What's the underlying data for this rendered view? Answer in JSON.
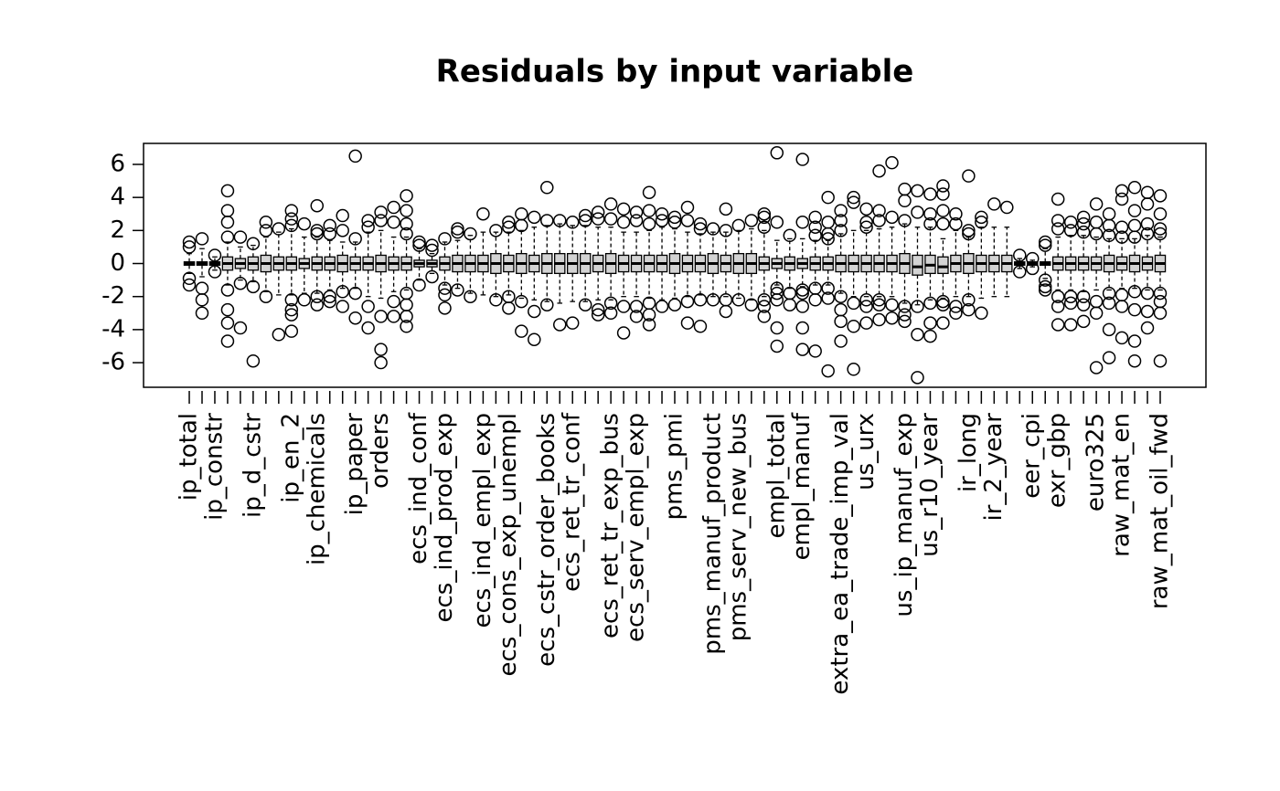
{
  "chart_data": {
    "type": "boxplot",
    "title": "Residuals by input variable",
    "categories": [
      "ip_total",
      null,
      "ip_constr",
      null,
      null,
      "ip_d_cstr",
      null,
      null,
      "ip_en_2",
      null,
      "ip_chemicals",
      null,
      null,
      "ip_paper",
      null,
      "orders",
      null,
      null,
      "ecs_ind_conf",
      null,
      "ecs_ind_prod_exp",
      null,
      null,
      "ecs_ind_empl_exp",
      null,
      "ecs_cons_exp_unempl",
      null,
      null,
      "ecs_cstr_order_books",
      null,
      "ecs_ret_tr_conf",
      null,
      null,
      "ecs_ret_tr_exp_bus",
      null,
      "ecs_serv_empl_exp",
      null,
      null,
      "pms_pmi",
      null,
      null,
      "pms_manuf_product",
      null,
      "pms_serv_new_bus",
      null,
      null,
      "empl_total",
      null,
      "empl_manuf",
      null,
      null,
      "extra_ea_trade_imp_val",
      null,
      "us_urx",
      null,
      null,
      "us_ip_manuf_exp",
      null,
      "us_r10_year",
      null,
      null,
      "ir_long",
      null,
      "ir_2_year",
      null,
      null,
      "eer_cpi",
      null,
      "exr_gbp",
      null,
      null,
      "euro325",
      null,
      "raw_mat_en",
      null,
      null,
      "raw_mat_oil_fwd"
    ],
    "median": [
      0,
      0,
      0,
      0,
      0,
      0,
      0,
      0,
      0,
      0,
      0,
      0,
      0,
      0,
      0,
      0,
      0,
      0,
      0,
      0,
      0,
      0,
      0,
      0,
      0,
      0,
      0,
      0,
      0,
      0,
      0,
      0,
      0,
      0,
      0,
      0,
      0,
      0,
      0,
      0,
      0,
      0,
      0,
      0,
      0,
      0,
      0,
      0,
      0,
      0,
      0,
      0,
      0,
      0,
      0,
      0,
      0,
      -0.2,
      -0.1,
      -0.2,
      0,
      0,
      0,
      0,
      0,
      0,
      0,
      0,
      0,
      0,
      0,
      0,
      0,
      0,
      0,
      0,
      0
    ],
    "q1": [
      -0.1,
      -0.1,
      -0.1,
      -0.4,
      -0.3,
      -0.4,
      -0.5,
      -0.4,
      -0.4,
      -0.3,
      -0.4,
      -0.4,
      -0.5,
      -0.4,
      -0.4,
      -0.5,
      -0.4,
      -0.4,
      -0.2,
      -0.2,
      -0.4,
      -0.5,
      -0.5,
      -0.5,
      -0.6,
      -0.5,
      -0.6,
      -0.5,
      -0.6,
      -0.6,
      -0.6,
      -0.6,
      -0.5,
      -0.6,
      -0.5,
      -0.5,
      -0.5,
      -0.5,
      -0.6,
      -0.5,
      -0.5,
      -0.6,
      -0.5,
      -0.6,
      -0.6,
      -0.4,
      -0.3,
      -0.4,
      -0.3,
      -0.4,
      -0.4,
      -0.5,
      -0.5,
      -0.5,
      -0.5,
      -0.5,
      -0.6,
      -0.7,
      -0.6,
      -0.6,
      -0.5,
      -0.6,
      -0.5,
      -0.5,
      -0.5,
      -0.1,
      -0.1,
      -0.1,
      -0.4,
      -0.4,
      -0.4,
      -0.4,
      -0.5,
      -0.4,
      -0.5,
      -0.4,
      -0.5
    ],
    "q3": [
      0.1,
      0.1,
      0.1,
      0.4,
      0.3,
      0.4,
      0.5,
      0.4,
      0.4,
      0.3,
      0.4,
      0.4,
      0.5,
      0.4,
      0.4,
      0.5,
      0.4,
      0.4,
      0.2,
      0.2,
      0.4,
      0.5,
      0.5,
      0.5,
      0.6,
      0.5,
      0.6,
      0.5,
      0.6,
      0.6,
      0.6,
      0.6,
      0.5,
      0.6,
      0.5,
      0.5,
      0.5,
      0.5,
      0.6,
      0.5,
      0.5,
      0.6,
      0.5,
      0.6,
      0.6,
      0.4,
      0.3,
      0.4,
      0.3,
      0.4,
      0.4,
      0.5,
      0.5,
      0.5,
      0.5,
      0.5,
      0.6,
      0.5,
      0.5,
      0.4,
      0.5,
      0.6,
      0.5,
      0.5,
      0.5,
      0.1,
      0.1,
      0.1,
      0.4,
      0.4,
      0.4,
      0.4,
      0.5,
      0.4,
      0.5,
      0.4,
      0.5
    ],
    "whisker_low": [
      -0.6,
      -0.8,
      -0.4,
      -1.3,
      -1.0,
      -1.1,
      -1.7,
      -1.9,
      -1.9,
      -1.8,
      -1.8,
      -1.6,
      -1.5,
      -1.5,
      -2.0,
      -2.1,
      -1.7,
      -1.6,
      -1.0,
      -0.6,
      -1.3,
      -1.5,
      -1.8,
      -1.9,
      -2.0,
      -1.9,
      -2.1,
      -2.2,
      -2.3,
      -2.4,
      -2.3,
      -2.3,
      -2.2,
      -2.2,
      -2.0,
      -2.0,
      -2.1,
      -2.2,
      -2.1,
      -2.0,
      -1.9,
      -2.0,
      -2.0,
      -2.1,
      -2.2,
      -2.0,
      -1.3,
      -1.5,
      -1.4,
      -1.3,
      -1.3,
      -1.8,
      -2.0,
      -2.0,
      -2.0,
      -2.0,
      -2.4,
      -2.5,
      -2.2,
      -2.1,
      -2.0,
      -2.0,
      -2.1,
      -2.0,
      -2.0,
      -0.3,
      -0.2,
      -0.9,
      -1.6,
      -1.6,
      -1.7,
      -1.6,
      -1.6,
      -1.5,
      -1.5,
      -1.6,
      -1.6
    ],
    "whisker_high": [
      0.6,
      0.9,
      0.4,
      1.3,
      1.0,
      1.1,
      1.6,
      1.9,
      2.1,
      1.6,
      1.6,
      1.4,
      1.3,
      1.3,
      1.9,
      2.0,
      1.6,
      1.6,
      0.9,
      0.6,
      1.3,
      1.4,
      1.7,
      1.9,
      1.9,
      1.9,
      2.0,
      2.2,
      2.3,
      2.4,
      2.3,
      2.3,
      2.2,
      2.2,
      1.9,
      1.9,
      2.0,
      2.2,
      2.1,
      1.9,
      1.8,
      1.9,
      1.9,
      2.0,
      2.1,
      2.0,
      1.4,
      1.5,
      1.5,
      1.4,
      1.4,
      1.8,
      2.0,
      2.0,
      2.1,
      2.2,
      2.4,
      2.2,
      2.2,
      1.5,
      2.0,
      1.6,
      2.2,
      2.2,
      2.2,
      0.3,
      0.2,
      0.9,
      1.6,
      1.7,
      1.7,
      1.6,
      1.5,
      1.5,
      1.5,
      1.7,
      1.6
    ],
    "outliers": [
      [
        1.3,
        1.0,
        -0.9,
        -1.3
      ],
      [
        1.5,
        -1.5,
        -2.2,
        -3.0
      ],
      [
        0.5,
        -0.5
      ],
      [
        4.4,
        3.2,
        2.5,
        1.6,
        -1.6,
        -2.8,
        -3.6,
        -4.7
      ],
      [
        1.6,
        -1.2,
        -3.9
      ],
      [
        1.2,
        -1.4,
        -5.9
      ],
      [
        2.5,
        2.0,
        -2.0
      ],
      [
        2.1,
        -4.3
      ],
      [
        3.2,
        2.7,
        2.3,
        -2.2,
        -2.8,
        -3.1,
        -4.1
      ],
      [
        2.4,
        -2.2
      ],
      [
        3.5,
        2.0,
        1.8,
        -2.0,
        -2.5
      ],
      [
        2.3,
        1.8,
        -2.0,
        -2.3
      ],
      [
        2.9,
        2.0,
        -1.7,
        -2.6
      ],
      [
        6.5,
        1.5,
        -1.8,
        -3.3
      ],
      [
        2.6,
        2.2,
        -2.6,
        -3.9
      ],
      [
        3.1,
        2.6,
        -3.2,
        -5.2,
        -6.0
      ],
      [
        3.4,
        2.5,
        -2.3,
        -3.2
      ],
      [
        4.1,
        3.2,
        2.4,
        1.8,
        -1.8,
        -2.5,
        -3.2,
        -3.8
      ],
      [
        1.3,
        1.1,
        -1.3
      ],
      [
        1.1,
        0.8,
        -0.8
      ],
      [
        1.5,
        -1.5,
        -1.9,
        -2.7
      ],
      [
        2.1,
        1.9,
        -1.6
      ],
      [
        1.8,
        -2.0
      ],
      [
        3.0
      ],
      [
        2.0,
        -2.2
      ],
      [
        2.5,
        2.2,
        -2.0,
        -2.7
      ],
      [
        3.0,
        2.3,
        -2.3,
        -4.1
      ],
      [
        2.8,
        -2.9,
        -4.6
      ],
      [
        4.6,
        2.6,
        -2.5
      ],
      [
        2.6,
        -3.7
      ],
      [
        2.5,
        -3.6
      ],
      [
        2.9,
        2.6,
        -2.5
      ],
      [
        3.1,
        2.7,
        -2.8,
        -3.1
      ],
      [
        3.6,
        2.7,
        -2.4,
        -3.0
      ],
      [
        3.3,
        2.5,
        -2.6,
        -4.2
      ],
      [
        3.1,
        2.6,
        -2.6,
        -3.2
      ],
      [
        4.3,
        3.2,
        2.4,
        -2.4,
        -3.1,
        -3.7
      ],
      [
        3.0,
        2.6,
        -2.6
      ],
      [
        2.8,
        2.5,
        -2.5
      ],
      [
        3.4,
        2.6,
        -2.3,
        -3.6
      ],
      [
        2.4,
        2.1,
        -2.2,
        -3.8
      ],
      [
        2.1,
        -2.2
      ],
      [
        3.3,
        2.0,
        -2.2,
        -2.9
      ],
      [
        2.3,
        -2.2
      ],
      [
        2.6,
        -2.5
      ],
      [
        3.0,
        2.8,
        2.2,
        -2.2,
        -2.6,
        -3.2
      ],
      [
        6.7,
        2.5,
        -1.5,
        -1.8,
        -2.2,
        -3.9,
        -5.0
      ],
      [
        1.7,
        -1.8,
        -2.5
      ],
      [
        6.3,
        2.5,
        -1.6,
        -1.8,
        -2.6,
        -3.9,
        -5.2
      ],
      [
        2.8,
        2.2,
        1.7,
        -1.5,
        -2.2,
        -5.3
      ],
      [
        4.0,
        2.5,
        1.8,
        1.5,
        -1.5,
        -2.1,
        -6.5
      ],
      [
        3.2,
        2.6,
        2.0,
        -2.0,
        -2.8,
        -3.5,
        -4.7
      ],
      [
        4.0,
        3.7,
        -2.4,
        -3.8,
        -6.4
      ],
      [
        3.3,
        2.5,
        2.2,
        -2.2,
        -2.6,
        -3.6
      ],
      [
        5.6,
        3.2,
        2.6,
        -2.2,
        -2.5,
        -3.4
      ],
      [
        6.1,
        2.8,
        -2.5,
        -3.3
      ],
      [
        4.5,
        3.8,
        2.6,
        -2.6,
        -3.1,
        -3.5
      ],
      [
        4.4,
        3.1,
        -2.6,
        -4.3,
        -6.9
      ],
      [
        4.2,
        3.0,
        2.4,
        -2.4,
        -3.6,
        -4.4
      ],
      [
        4.7,
        4.2,
        3.2,
        2.4,
        -2.3,
        -2.5,
        -3.6
      ],
      [
        3.0,
        2.4,
        -2.6,
        -3.0
      ],
      [
        5.3,
        2.0,
        1.8,
        -2.2,
        -2.8
      ],
      [
        2.8,
        2.5,
        -3.0
      ],
      [
        3.6
      ],
      [
        3.4
      ],
      [
        0.5,
        -0.5
      ],
      [
        0.3,
        -0.3
      ],
      [
        1.3,
        1.1,
        -1.0,
        -1.4,
        -1.6
      ],
      [
        3.9,
        2.6,
        2.1,
        -2.0,
        -2.6,
        -3.7
      ],
      [
        2.5,
        2.0,
        -2.0,
        -2.4,
        -3.7
      ],
      [
        2.8,
        2.4,
        1.9,
        -2.0,
        -2.5,
        -3.5
      ],
      [
        3.6,
        2.5,
        1.8,
        -2.3,
        -3.0,
        -6.3
      ],
      [
        3.0,
        2.3,
        1.7,
        -1.8,
        -2.4,
        -4.0,
        -5.7
      ],
      [
        4.4,
        3.9,
        2.2,
        1.6,
        -1.9,
        -2.6,
        -4.5
      ],
      [
        4.6,
        3.2,
        2.3,
        1.6,
        -1.7,
        -2.8,
        -4.7,
        -5.9
      ],
      [
        4.3,
        3.6,
        2.4,
        1.8,
        -1.8,
        -2.9,
        -3.9
      ],
      [
        4.1,
        3.0,
        2.1,
        1.8,
        -1.8,
        -2.3,
        -3.0,
        -5.9
      ]
    ],
    "color": "#d3d3d3",
    "ylim": [
      -7.49,
      7.27
    ],
    "yticks": [
      -6,
      -4,
      -2,
      0,
      2,
      4,
      6
    ]
  }
}
